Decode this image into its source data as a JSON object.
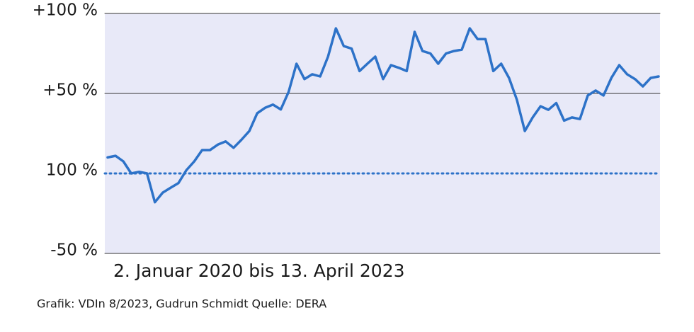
{
  "chart_data": {
    "type": "line",
    "x_label": "2. Januar 2020 bis 13. April 2023",
    "source": "Grafik: VDIn 8/2023, Gudrun Schmidt Quelle: DERA",
    "color": "#2d72c8",
    "values": [
      10,
      11,
      7.5,
      0,
      1,
      0,
      -18,
      -12,
      -9,
      -6,
      2,
      7.5,
      14.6,
      14.6,
      18,
      20,
      16,
      21,
      26.5,
      37.6,
      41,
      43,
      40,
      51,
      68.6,
      59,
      62,
      60.6,
      73,
      90.7,
      79.6,
      78,
      64,
      68.6,
      73,
      59,
      67.7,
      66,
      64,
      88.5,
      76.5,
      75,
      68.6,
      75,
      76.5,
      77.4,
      90.7,
      84,
      84,
      64,
      68.6,
      59.7,
      46,
      26.5,
      35,
      42,
      39.8,
      44,
      33,
      35,
      34,
      48.7,
      51.8,
      48.7,
      59.7,
      67.7,
      62,
      59,
      54.4,
      59.7,
      60.6
    ],
    "ylim": [
      -50,
      100
    ],
    "yticks": [
      {
        "value": -50,
        "label": "-50 %"
      },
      {
        "value": 0,
        "label": "100 %"
      },
      {
        "value": 50,
        "label": "+50 %"
      },
      {
        "value": 100,
        "label": "+100 %"
      }
    ],
    "grid": true
  }
}
